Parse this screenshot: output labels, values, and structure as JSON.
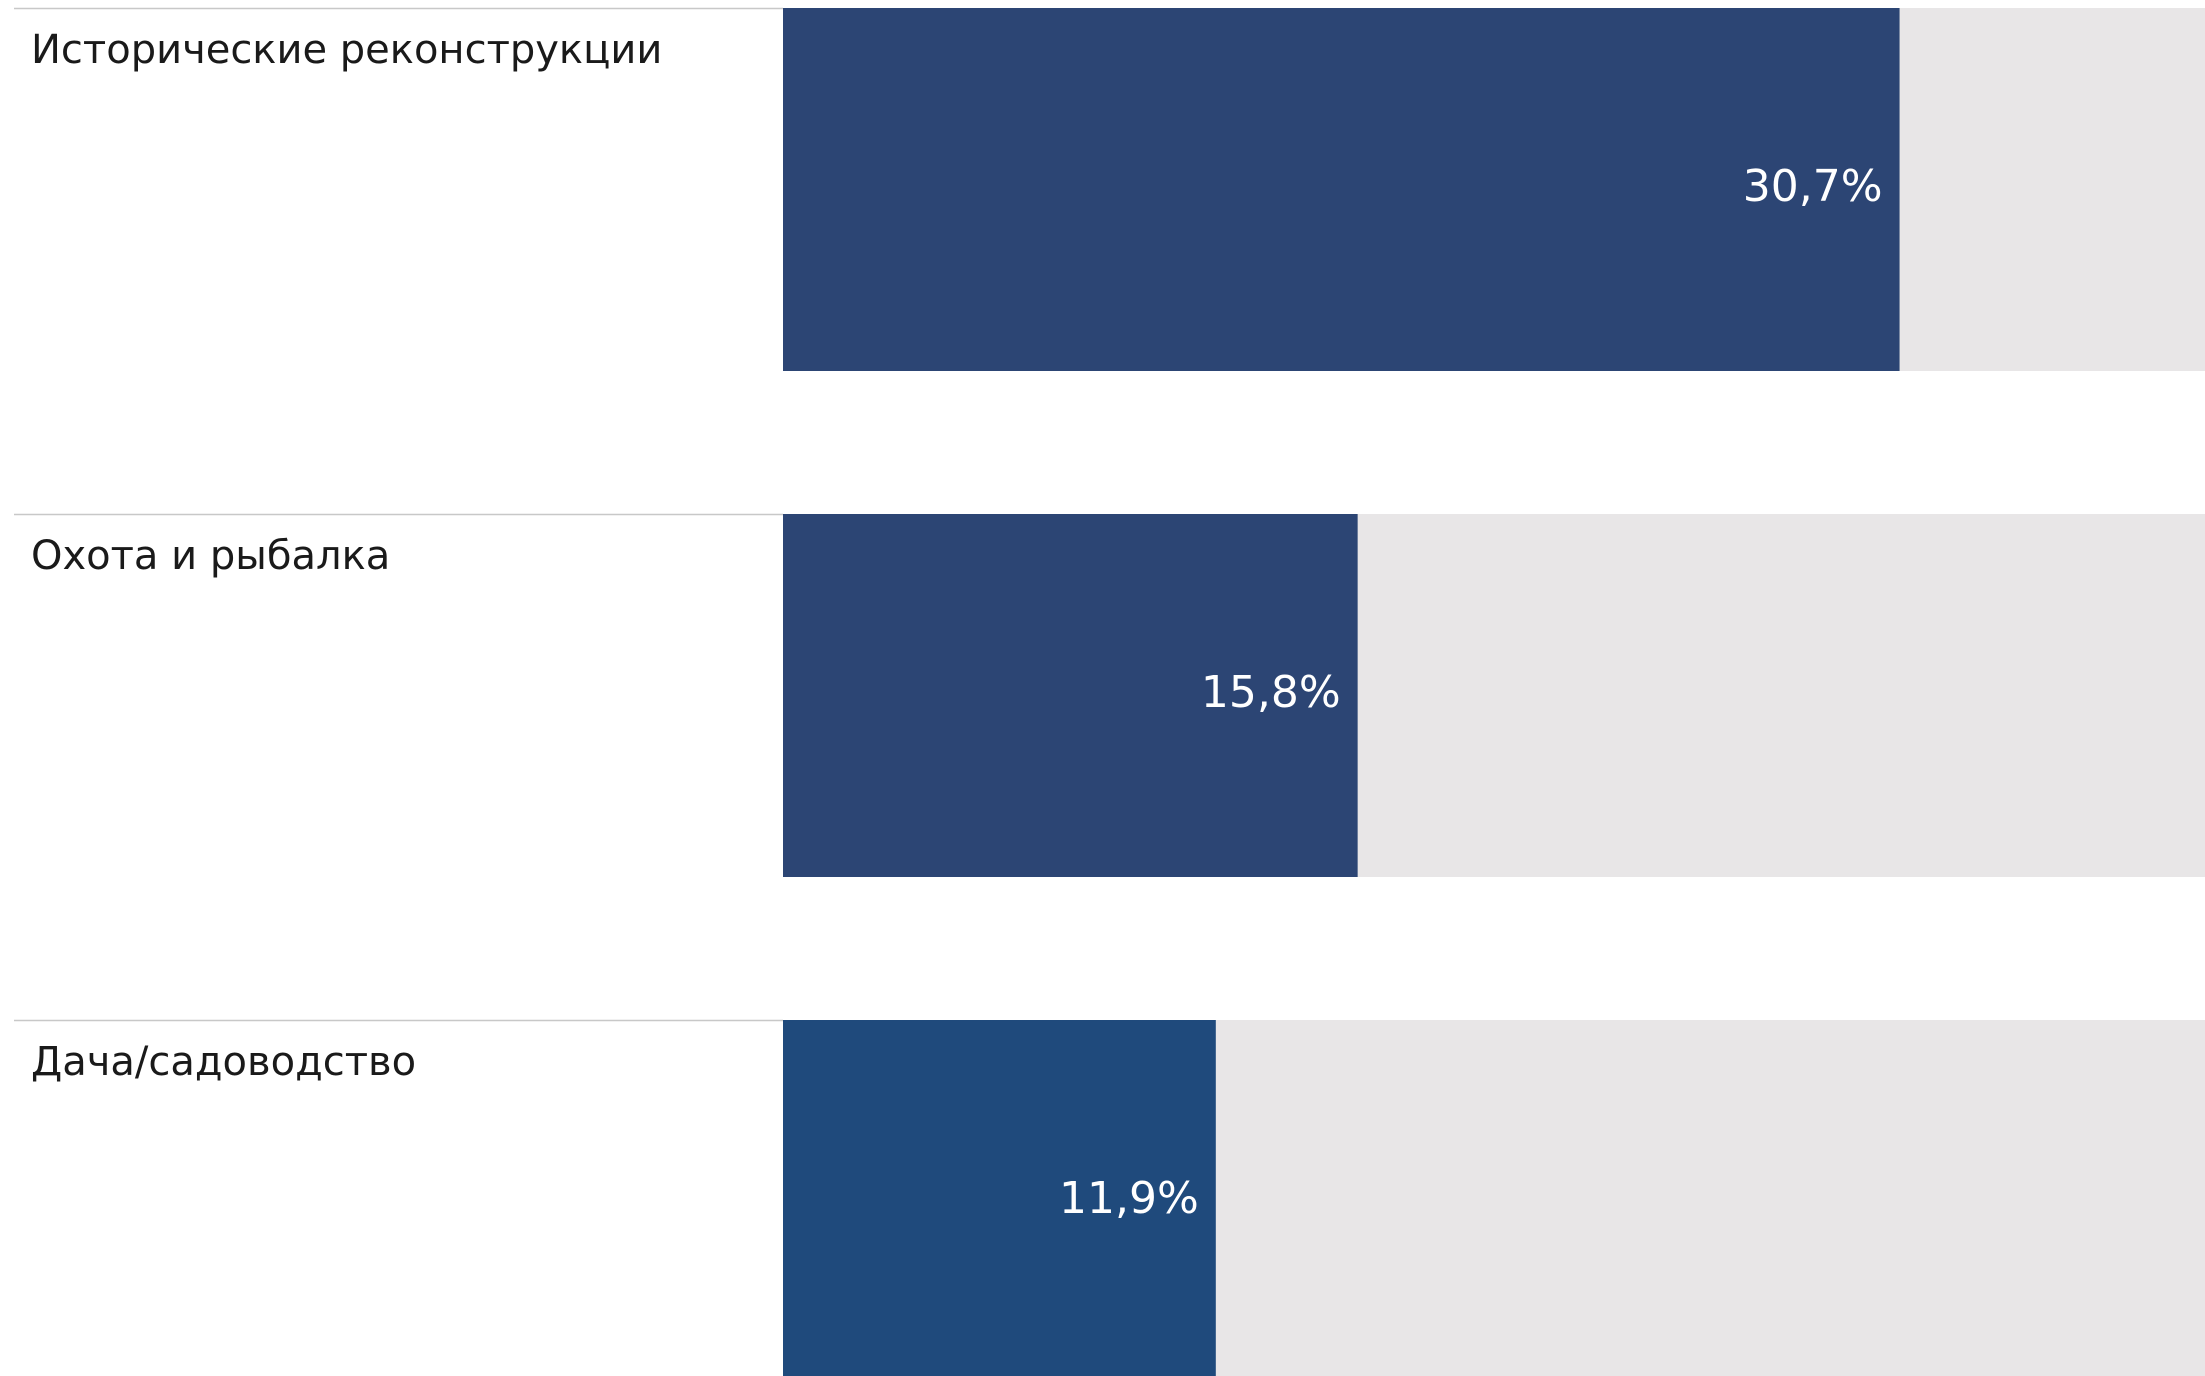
{
  "chart_data": {
    "type": "bar",
    "categories": [
      "Исторические реконструкции",
      "Охота и рыбалка",
      "Дача/садоводство"
    ],
    "values": [
      30.7,
      15.8,
      11.9
    ],
    "value_labels": [
      "30,7%",
      "15,8%",
      "11,9%"
    ],
    "colors": [
      "#2c4574",
      "#2c4574",
      "#1f4a7c"
    ],
    "track_color": "#e8e6e7"
  }
}
